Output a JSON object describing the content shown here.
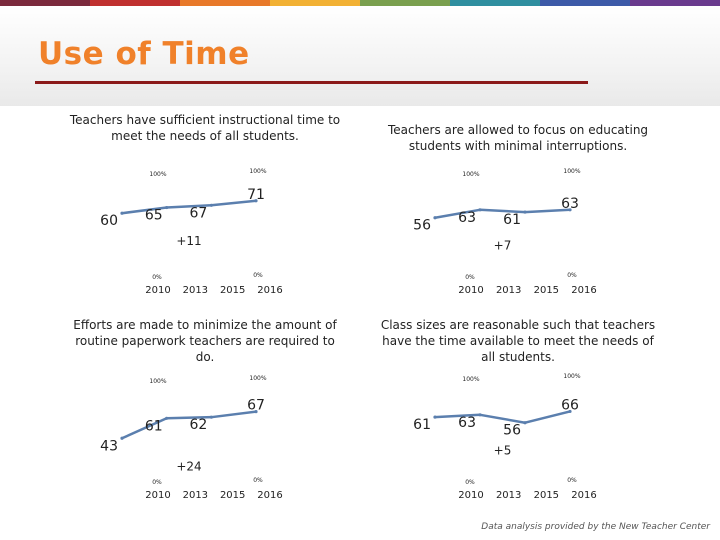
{
  "header": {
    "title": "Use of Time",
    "stripe_colors": [
      "#7b2a3d",
      "#c0302f",
      "#e8792a",
      "#f2b134",
      "#7aa04f",
      "#2f8fa0",
      "#3d5aa8",
      "#6a3b8e"
    ]
  },
  "credit": "Data analysis provided by the New Teacher Center",
  "colors": {
    "line": "#5b7fae",
    "text": "#222222"
  },
  "chart_data": [
    {
      "type": "line",
      "title": "Teachers have sufficient instructional time to meet the needs of all students.",
      "categories": [
        "2010",
        "2013",
        "2015",
        "2016"
      ],
      "values": [
        60,
        65,
        67,
        71
      ],
      "change_label": "+11",
      "ylim": [
        0,
        100
      ],
      "ylim_labels": {
        "top_left": "100%",
        "top_right": "100%",
        "bottom_left": "0%",
        "bottom_right": "0%"
      },
      "grid": false
    },
    {
      "type": "line",
      "title": "Teachers are allowed to focus on educating students with minimal interruptions.",
      "categories": [
        "2010",
        "2013",
        "2015",
        "2016"
      ],
      "values": [
        56,
        63,
        61,
        63
      ],
      "change_label": "+7",
      "ylim": [
        0,
        100
      ],
      "ylim_labels": {
        "top_left": "100%",
        "top_right": "100%",
        "bottom_left": "0%",
        "bottom_right": "0%"
      },
      "grid": false
    },
    {
      "type": "line",
      "title": "Efforts are made to minimize the amount of routine paperwork teachers are required to do.",
      "categories": [
        "2010",
        "2013",
        "2015",
        "2016"
      ],
      "values": [
        43,
        61,
        62,
        67
      ],
      "change_label": "+24",
      "ylim": [
        0,
        100
      ],
      "ylim_labels": {
        "top_left": "100%",
        "top_right": "100%",
        "bottom_left": "0%",
        "bottom_right": "0%"
      },
      "grid": false
    },
    {
      "type": "line",
      "title": "Class sizes are reasonable such that teachers have the time available to meet the needs of all students.",
      "categories": [
        "2010",
        "2013",
        "2015",
        "2016"
      ],
      "values": [
        61,
        63,
        56,
        66
      ],
      "change_label": "+5",
      "ylim": [
        0,
        100
      ],
      "ylim_labels": {
        "top_left": "100%",
        "top_right": "100%",
        "bottom_left": "0%",
        "bottom_right": "0%"
      },
      "grid": false
    }
  ]
}
